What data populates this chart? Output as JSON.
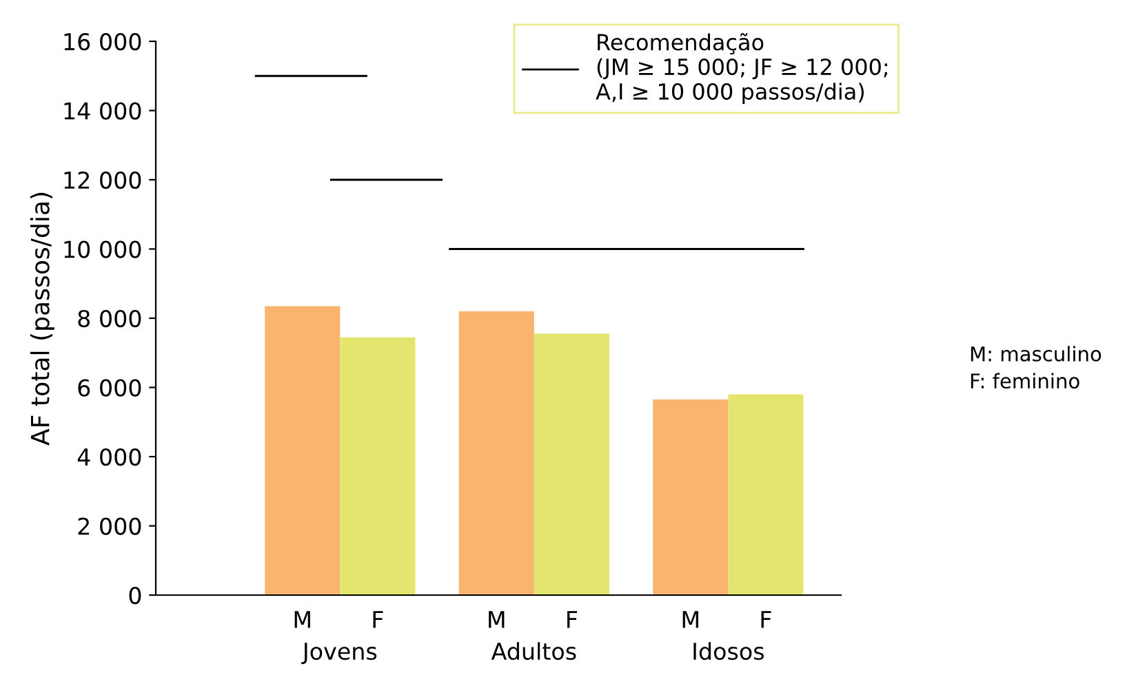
{
  "chart_data": {
    "type": "bar",
    "ylabel": "AF total (passos/dia)",
    "categories": [
      "M",
      "F",
      "M",
      "F",
      "M",
      "F"
    ],
    "values": [
      8350,
      7450,
      8200,
      7550,
      5650,
      5800
    ],
    "colors": [
      "#f9b46e",
      "#e3e56e",
      "#f9b46e",
      "#e3e56e",
      "#f9b46e",
      "#e3e56e"
    ],
    "ref_lines": [
      {
        "axis": "y",
        "value": 15000,
        "label": "Recomendação\n(JM ≥ 15 000; JF ≥ 12 000;\nA,I ≥ 10 000 passos/dia)",
        "color": "#000000"
      },
      {
        "axis": "y",
        "value": 12000,
        "color": "#000000"
      },
      {
        "axis": "y",
        "value": 10000,
        "color": "#000000"
      }
    ],
    "ylim": [
      0,
      16000
    ],
    "yticks": [
      0,
      {
        "value": 2000,
        "label": "2 000"
      },
      {
        "value": 4000,
        "label": "4 000"
      },
      {
        "value": 6000,
        "label": "6 000"
      },
      {
        "value": 8000,
        "label": "8 000"
      },
      {
        "value": 10000,
        "label": "10 000"
      },
      {
        "value": 12000,
        "label": "12 000"
      },
      {
        "value": 14000,
        "label": "14 000"
      },
      {
        "value": 16000,
        "label": "16 000"
      }
    ],
    "annotations": [
      "Jovens",
      "Adultos",
      "Idosos",
      "M: masculino\nF: feminino"
    ],
    "legend": "top right",
    "grid": false
  }
}
